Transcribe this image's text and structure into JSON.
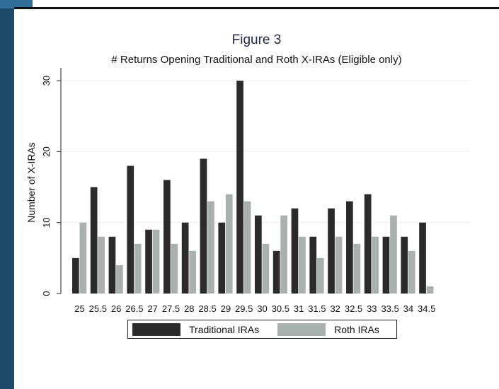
{
  "figure": {
    "title": "Figure 3",
    "subtitle": "# Returns Opening Traditional and Roth X-IRAs (Eligible only)"
  },
  "colors": {
    "traditional": "#2b2b2b",
    "roth": "#a9b0b0",
    "frame_bar": "#1b4a6b",
    "title": "#1e2a4a"
  },
  "chart_data": {
    "type": "bar",
    "title": "# Returns Opening Traditional and Roth X-IRAs (Eligible only)",
    "xlabel": "",
    "ylabel": "Number of X-IRAs",
    "ylim": [
      0,
      30
    ],
    "yticks": [
      0,
      10,
      20,
      30
    ],
    "grid": true,
    "legend_position": "bottom",
    "categories": [
      "25",
      "25.5",
      "26",
      "26.5",
      "27",
      "27.5",
      "28",
      "28.5",
      "29",
      "29.5",
      "30",
      "30.5",
      "31",
      "31.5",
      "32",
      "32.5",
      "33",
      "33.5",
      "34",
      "34.5"
    ],
    "series": [
      {
        "name": "Traditional IRAs",
        "values": [
          5,
          15,
          8,
          18,
          9,
          16,
          10,
          19,
          10,
          30,
          11,
          6,
          12,
          8,
          12,
          13,
          14,
          8,
          8,
          10
        ]
      },
      {
        "name": "Roth IRAs",
        "values": [
          10,
          8,
          4,
          7,
          9,
          7,
          6,
          13,
          14,
          13,
          7,
          11,
          8,
          5,
          8,
          7,
          8,
          11,
          6,
          1
        ]
      }
    ]
  }
}
